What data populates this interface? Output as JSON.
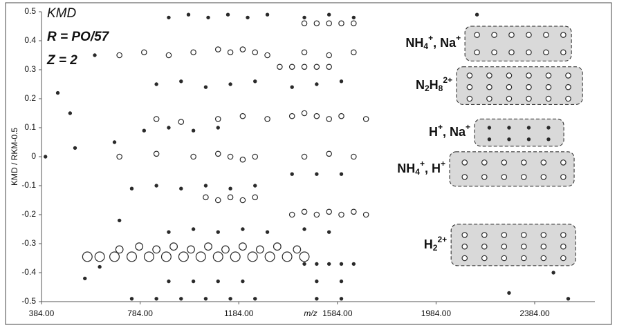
{
  "chart_data": {
    "type": "scatter",
    "y_label": "KMD / RKM-0.5",
    "x_label": "m/z",
    "xlim": [
      384,
      2628
    ],
    "ylim": [
      -0.5,
      0.5
    ],
    "xticks": [
      {
        "value": 384,
        "label": "384.00"
      },
      {
        "value": 784,
        "label": "784.00"
      },
      {
        "value": 1184,
        "label": "1184.00"
      },
      {
        "value": 1584,
        "label": "1584.00"
      },
      {
        "value": 1984,
        "label": "1984.00"
      },
      {
        "value": 2384,
        "label": "2384.00"
      }
    ],
    "yticks": [
      0.5,
      0.4,
      0.3,
      0.2,
      0.1,
      0,
      -0.1,
      -0.2,
      -0.3,
      -0.4,
      -0.5
    ],
    "grid": false,
    "color": "#2a2a2a",
    "box_color": "#d9d9d9",
    "annotations": [
      {
        "text": "KMD",
        "weight": "normal"
      },
      {
        "text": "R = PO/57",
        "weight": "bold"
      },
      {
        "text": "Z = 2",
        "weight": "bold"
      }
    ],
    "regions": [
      {
        "xrange": [
          2101,
          2533
        ],
        "yrange": [
          0.33,
          0.45
        ],
        "label_parts": [
          {
            "text": "NH",
            "pos": "base"
          },
          {
            "text": "4",
            "pos": "sub"
          },
          {
            "text": "+",
            "pos": "sup"
          },
          {
            "text": ", Na",
            "pos": "base"
          },
          {
            "text": "+",
            "pos": "sup"
          }
        ]
      },
      {
        "xrange": [
          2067,
          2578
        ],
        "yrange": [
          0.18,
          0.31
        ],
        "label_parts": [
          {
            "text": "N",
            "pos": "base"
          },
          {
            "text": "2",
            "pos": "sub"
          },
          {
            "text": "H",
            "pos": "base"
          },
          {
            "text": "8",
            "pos": "sub"
          },
          {
            "text": "2+",
            "pos": "sup"
          }
        ]
      },
      {
        "xrange": [
          2140,
          2502
        ],
        "yrange": [
          0.036,
          0.13
        ],
        "label_parts": [
          {
            "text": "H",
            "pos": "base"
          },
          {
            "text": "+",
            "pos": "sup"
          },
          {
            "text": ", Na",
            "pos": "base"
          },
          {
            "text": "+",
            "pos": "sup"
          }
        ]
      },
      {
        "xrange": [
          2039,
          2544
        ],
        "yrange": [
          -0.102,
          0.017
        ],
        "label_parts": [
          {
            "text": "NH",
            "pos": "base"
          },
          {
            "text": "4",
            "pos": "sub"
          },
          {
            "text": "+",
            "pos": "sup"
          },
          {
            "text": ", H",
            "pos": "base"
          },
          {
            "text": "+",
            "pos": "sup"
          }
        ]
      },
      {
        "xrange": [
          2045,
          2550
        ],
        "yrange": [
          -0.376,
          -0.233
        ],
        "label_parts": [
          {
            "text": "H",
            "pos": "base"
          },
          {
            "text": "2",
            "pos": "sub"
          },
          {
            "text": "2+",
            "pos": "sup"
          }
        ]
      }
    ],
    "series": [
      {
        "size": 1,
        "x": [
          900,
          980,
          1060,
          1140,
          1220,
          1300,
          1450,
          1550,
          1650
        ],
        "values": [
          0.48,
          0.49,
          0.48,
          0.49,
          0.48,
          0.49,
          0.48,
          0.49,
          0.48
        ]
      },
      {
        "size": 2,
        "x": [
          1450,
          1500,
          1550,
          1600,
          1650
        ],
        "values": [
          0.46,
          0.46,
          0.46,
          0.46,
          0.46
        ]
      },
      {
        "size": 2,
        "x": [
          700,
          800,
          900,
          1000,
          1100,
          1150,
          1200,
          1250,
          1300,
          1450,
          1550,
          1650
        ],
        "values": [
          0.35,
          0.36,
          0.35,
          0.36,
          0.37,
          0.36,
          0.37,
          0.36,
          0.35,
          0.36,
          0.35,
          0.36
        ]
      },
      {
        "size": 2,
        "x": [
          1350,
          1400,
          1450,
          1500,
          1550
        ],
        "values": [
          0.31,
          0.31,
          0.31,
          0.31,
          0.31
        ]
      },
      {
        "size": 1,
        "x": [
          850,
          950,
          1050,
          1150,
          1250,
          1400,
          1500,
          1600
        ],
        "values": [
          0.25,
          0.26,
          0.24,
          0.25,
          0.26,
          0.24,
          0.25,
          0.26
        ]
      },
      {
        "size": 2,
        "x": [
          850,
          950,
          1100,
          1200,
          1300,
          1400,
          1450,
          1500,
          1550,
          1600,
          1700
        ],
        "values": [
          0.13,
          0.12,
          0.13,
          0.14,
          0.13,
          0.14,
          0.15,
          0.14,
          0.13,
          0.14,
          0.13
        ]
      },
      {
        "size": 1,
        "x": [
          800,
          900,
          1000,
          1100
        ],
        "values": [
          0.09,
          0.1,
          0.09,
          0.1
        ]
      },
      {
        "size": 2,
        "x": [
          700,
          850,
          1000,
          1100,
          1150,
          1200,
          1250,
          1450,
          1550,
          1650
        ],
        "values": [
          0.0,
          0.01,
          0.0,
          0.01,
          0.0,
          -0.01,
          0.0,
          0.0,
          0.01,
          0.0
        ]
      },
      {
        "size": 1,
        "x": [
          1400,
          1500,
          1600
        ],
        "values": [
          -0.06,
          -0.06,
          -0.06
        ]
      },
      {
        "size": 1,
        "x": [
          750,
          850,
          950,
          1050,
          1150,
          1250
        ],
        "values": [
          -0.11,
          -0.1,
          -0.11,
          -0.1,
          -0.11,
          -0.1
        ]
      },
      {
        "size": 2,
        "x": [
          1050,
          1100,
          1150,
          1200,
          1250
        ],
        "values": [
          -0.14,
          -0.15,
          -0.14,
          -0.15,
          -0.14
        ]
      },
      {
        "size": 2,
        "x": [
          1400,
          1450,
          1500,
          1550,
          1600,
          1650,
          1700
        ],
        "values": [
          -0.2,
          -0.19,
          -0.2,
          -0.19,
          -0.2,
          -0.19,
          -0.2
        ]
      },
      {
        "size": 1,
        "x": [
          900,
          1000,
          1100,
          1200,
          1300,
          1450,
          1550
        ],
        "values": [
          -0.26,
          -0.25,
          -0.26,
          -0.25,
          -0.26,
          -0.25,
          -0.26
        ]
      },
      {
        "size": 3,
        "x": [
          700,
          780,
          850,
          920,
          990,
          1060,
          1130,
          1200,
          1270,
          1340,
          1420
        ],
        "values": [
          -0.32,
          -0.31,
          -0.32,
          -0.31,
          -0.32,
          -0.31,
          -0.32,
          -0.31,
          -0.32,
          -0.31,
          -0.32
        ]
      },
      {
        "size": 4,
        "x": [
          570,
          620,
          680,
          750,
          820,
          890,
          960,
          1030,
          1100,
          1170,
          1240,
          1310,
          1380,
          1450
        ],
        "values": [
          -0.345,
          -0.345,
          -0.345,
          -0.345,
          -0.345,
          -0.345,
          -0.345,
          -0.345,
          -0.345,
          -0.345,
          -0.345,
          -0.345,
          -0.345,
          -0.345
        ]
      },
      {
        "size": 1,
        "x": [
          1450,
          1500,
          1550,
          1600,
          1650
        ],
        "values": [
          -0.37,
          -0.37,
          -0.37,
          -0.37,
          -0.37
        ]
      },
      {
        "size": 1,
        "x": [
          900,
          1000,
          1100,
          1200,
          1500,
          1600
        ],
        "values": [
          -0.43,
          -0.43,
          -0.43,
          -0.43,
          -0.43,
          -0.43
        ]
      },
      {
        "size": 1,
        "x": [
          750,
          850,
          950,
          1050,
          1150,
          1250,
          1500,
          1600
        ],
        "values": [
          -0.49,
          -0.49,
          -0.49,
          -0.49,
          -0.49,
          -0.49,
          -0.49,
          -0.49
        ]
      },
      {
        "size": 1,
        "x": [
          400,
          450,
          500,
          520,
          600,
          560,
          620,
          680,
          700,
          2150,
          2520,
          2280,
          2460
        ],
        "values": [
          0.0,
          0.22,
          0.15,
          0.03,
          0.35,
          -0.42,
          -0.38,
          0.05,
          -0.22,
          0.49,
          -0.49,
          -0.47,
          -0.4
        ]
      },
      {
        "size": 2,
        "x": [
          2150,
          2220,
          2290,
          2360,
          2430,
          2500,
          2150,
          2220,
          2290,
          2360,
          2430,
          2500
        ],
        "values": [
          0.42,
          0.42,
          0.42,
          0.42,
          0.42,
          0.42,
          0.36,
          0.36,
          0.36,
          0.36,
          0.36,
          0.36
        ]
      },
      {
        "size": 2,
        "x": [
          2120,
          2200,
          2280,
          2360,
          2440,
          2520,
          2120,
          2200,
          2280,
          2360,
          2440,
          2520,
          2120,
          2200,
          2280,
          2360,
          2440,
          2520
        ],
        "values": [
          0.28,
          0.28,
          0.28,
          0.28,
          0.28,
          0.28,
          0.24,
          0.24,
          0.24,
          0.24,
          0.24,
          0.24,
          0.2,
          0.2,
          0.2,
          0.2,
          0.2,
          0.2
        ]
      },
      {
        "size": 1,
        "x": [
          2200,
          2280,
          2360,
          2440,
          2200,
          2280,
          2360,
          2440
        ],
        "values": [
          0.1,
          0.1,
          0.1,
          0.1,
          0.06,
          0.06,
          0.06,
          0.06
        ]
      },
      {
        "size": 2,
        "x": [
          2100,
          2180,
          2260,
          2340,
          2420,
          2500,
          2100,
          2180,
          2260,
          2340,
          2420,
          2500
        ],
        "values": [
          -0.02,
          -0.02,
          -0.02,
          -0.02,
          -0.02,
          -0.02,
          -0.07,
          -0.07,
          -0.07,
          -0.07,
          -0.07,
          -0.07
        ]
      },
      {
        "size": 2,
        "x": [
          2100,
          2180,
          2260,
          2340,
          2420,
          2500,
          2100,
          2180,
          2260,
          2340,
          2420,
          2500,
          2100,
          2180,
          2260,
          2340,
          2420,
          2500
        ],
        "values": [
          -0.27,
          -0.27,
          -0.27,
          -0.27,
          -0.27,
          -0.27,
          -0.31,
          -0.31,
          -0.31,
          -0.31,
          -0.31,
          -0.31,
          -0.35,
          -0.35,
          -0.35,
          -0.35,
          -0.35,
          -0.35
        ]
      }
    ]
  }
}
